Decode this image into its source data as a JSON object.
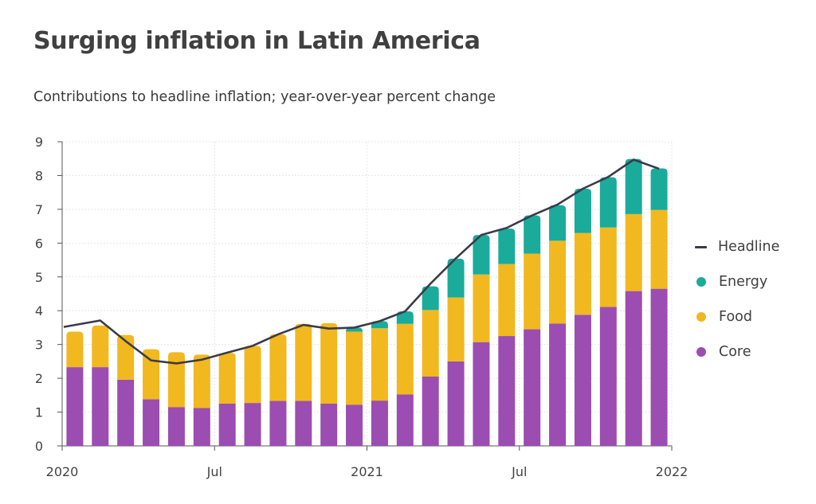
{
  "chart_data": {
    "type": "bar",
    "title": "Surging inflation in Latin America",
    "subtitle": "Contributions to headline inflation; year-over-year percent change",
    "xlabel": "",
    "ylabel": "",
    "ylim": [
      0,
      9
    ],
    "yticks": [
      "0",
      "1",
      "2",
      "3",
      "4",
      "5",
      "6",
      "7",
      "8",
      "9"
    ],
    "xticks": [
      "2020",
      "Jul",
      "2021",
      "Jul",
      "2022"
    ],
    "grid": true,
    "legend_placement": "right",
    "categories": [
      "Jan 2020",
      "Feb 2020",
      "Mar 2020",
      "Apr 2020",
      "May 2020",
      "Jun 2020",
      "Jul 2020",
      "Aug 2020",
      "Sep 2020",
      "Oct 2020",
      "Nov 2020",
      "Dec 2020",
      "Jan 2021",
      "Feb 2021",
      "Mar 2021",
      "Apr 2021",
      "May 2021",
      "Jun 2021",
      "Jul 2021",
      "Aug 2021",
      "Sep 2021",
      "Oct 2021",
      "Nov 2021",
      "Dec 2021"
    ],
    "series": [
      {
        "name": "Core",
        "type": "bar",
        "color": "#9b4db2",
        "values": [
          2.33,
          2.33,
          1.96,
          1.38,
          1.15,
          1.12,
          1.25,
          1.27,
          1.33,
          1.33,
          1.25,
          1.22,
          1.34,
          1.52,
          2.05,
          2.5,
          3.07,
          3.25,
          3.45,
          3.62,
          3.88,
          4.11,
          4.58,
          4.65
        ]
      },
      {
        "name": "Food",
        "type": "bar",
        "color": "#f2b81f",
        "values": [
          1.05,
          1.23,
          1.32,
          1.48,
          1.62,
          1.58,
          1.5,
          1.69,
          1.97,
          2.28,
          2.38,
          2.16,
          2.14,
          2.09,
          1.97,
          1.89,
          2.0,
          2.13,
          2.24,
          2.45,
          2.42,
          2.35,
          2.28,
          2.33
        ]
      },
      {
        "name": "Energy",
        "type": "bar",
        "color": "#1aab9b",
        "values": [
          0,
          0,
          0,
          0,
          0,
          0,
          0,
          0,
          0,
          0,
          0,
          0.12,
          0.21,
          0.37,
          0.7,
          1.15,
          1.17,
          1.05,
          1.13,
          1.05,
          1.31,
          1.49,
          1.63,
          1.23
        ]
      },
      {
        "name": "Headline",
        "type": "line",
        "color": "#3b3b48",
        "values": [
          3.52,
          3.71,
          3.1,
          2.53,
          2.44,
          2.55,
          2.76,
          2.96,
          3.3,
          3.58,
          3.47,
          3.5,
          3.69,
          3.98,
          4.8,
          5.55,
          6.24,
          6.45,
          6.82,
          7.14,
          7.61,
          7.96,
          8.47,
          8.2
        ]
      }
    ],
    "headline_x": [
      "Jan 2020",
      "Feb 2020",
      "Mar 2020",
      "Apr 2020",
      "May 2020",
      "Jun 2020",
      "Jul 2020",
      "Aug 2020",
      "Sep 2020",
      "Oct 2020",
      "Nov 2020",
      "Dec 2020",
      "Jan 2021",
      "Feb 2021",
      "Mar 2021",
      "Apr 2021",
      "May 2021",
      "Jun 2021",
      "Jul 2021",
      "Aug 2021",
      "Sep 2021",
      "Oct 2021",
      "Nov 2021",
      "Dec 2021"
    ]
  },
  "legend": [
    {
      "label": "Headline",
      "kind": "line",
      "color": "#3b3b48"
    },
    {
      "label": "Energy",
      "kind": "dot",
      "color": "#1aab9b"
    },
    {
      "label": "Food",
      "kind": "dot",
      "color": "#f2b81f"
    },
    {
      "label": "Core",
      "kind": "dot",
      "color": "#9b4db2"
    }
  ]
}
